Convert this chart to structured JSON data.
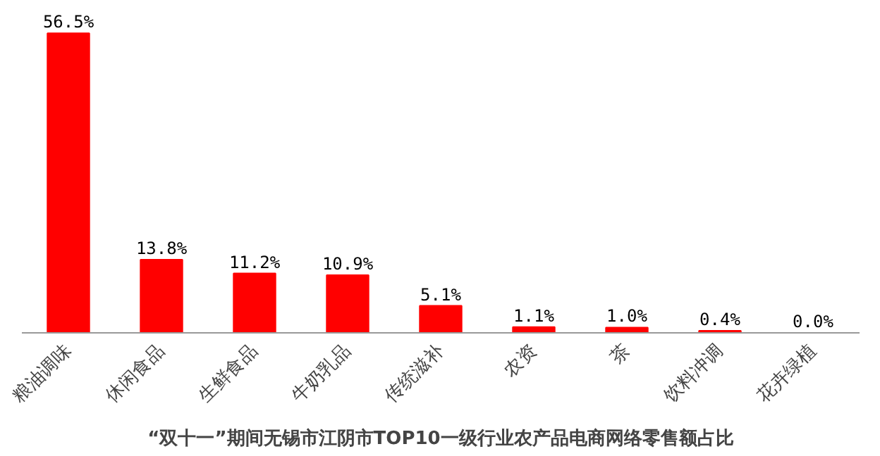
{
  "chart_data": {
    "type": "bar",
    "title": "“双十一”期间无锡市江阴市TOP10一级行业农产品电商网络零售额占比",
    "categories": [
      "粮油调味",
      "休闲食品",
      "生鲜食品",
      "牛奶乳品",
      "传统滋补",
      "农资",
      "茶",
      "饮料冲调",
      "花卉绿植"
    ],
    "values": [
      56.5,
      13.8,
      11.2,
      10.9,
      5.1,
      1.1,
      1.0,
      0.4,
      0.0
    ],
    "value_labels": [
      "56.5%",
      "13.8%",
      "11.2%",
      "10.9%",
      "5.1%",
      "1.1%",
      "1.0%",
      "0.4%",
      "0.0%"
    ],
    "color": "#ff0000",
    "grid": false
  }
}
